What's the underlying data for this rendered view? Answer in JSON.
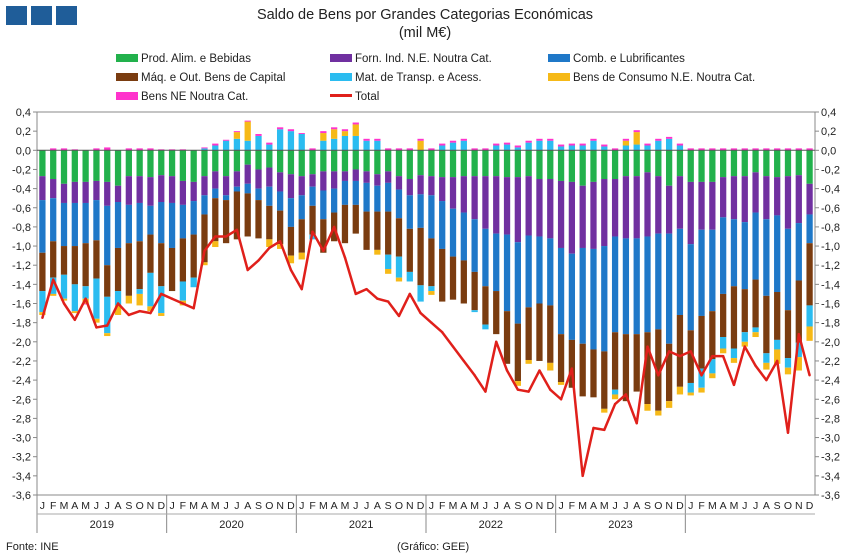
{
  "header": {
    "logo": "logo-squares"
  },
  "colors": {
    "prod_alim": "#22b14c",
    "forn_ind": "#7030a0",
    "comb": "#1f78c8",
    "maq": "#7a3c10",
    "transp": "#2bbcf0",
    "consumo": "#f6b917",
    "bens_ne": "#ff33cc",
    "total": "#e0201b"
  },
  "chart_data": {
    "type": "bar",
    "stacked": true,
    "title": "Saldo de Bens por Grandes Categorias Económicas",
    "subtitle": "(mil M€)",
    "ylim": [
      -3.6,
      0.4
    ],
    "yticks": [
      "0,4",
      "0,2",
      "0,0",
      "-0,2",
      "-0,4",
      "-0,6",
      "-0,8",
      "-1,0",
      "-1,2",
      "-1,4",
      "-1,6",
      "-1,8",
      "-2,0",
      "-2,2",
      "-2,4",
      "-2,6",
      "-2,8",
      "-3,0",
      "-3,2",
      "-3,4",
      "-3,6"
    ],
    "month_labels": [
      "J",
      "F",
      "M",
      "A",
      "M",
      "J",
      "J",
      "A",
      "S",
      "O",
      "N",
      "D"
    ],
    "years": [
      "2019",
      "2020",
      "2021",
      "2022",
      "2023"
    ],
    "legend": [
      "Prod. Alim. e Bebidas",
      "Forn. Ind. N.E. Noutra Cat.",
      "Comb. e Lubrificantes",
      "Máq. e Out. Bens de Capital",
      "Mat. de Transp. e Acess.",
      "Bens de Consumo N.E. Noutra Cat.",
      "Bens NE Noutra Cat.",
      "Total"
    ],
    "series": [
      {
        "name": "Prod. Alim. e Bebidas",
        "values": [
          -0.27,
          -0.3,
          -0.35,
          -0.33,
          -0.33,
          -0.32,
          -0.33,
          -0.37,
          -0.27,
          -0.27,
          -0.28,
          -0.26,
          -0.27,
          -0.32,
          -0.33,
          -0.27,
          -0.22,
          -0.27,
          -0.22,
          -0.15,
          -0.2,
          -0.18,
          -0.23,
          -0.25,
          -0.27,
          -0.25,
          -0.22,
          -0.22,
          -0.22,
          -0.2,
          -0.22,
          -0.25,
          -0.22,
          -0.27,
          -0.3,
          -0.26,
          -0.27,
          -0.28,
          -0.28,
          -0.27,
          -0.27,
          -0.27,
          -0.27,
          -0.28,
          -0.28,
          -0.27,
          -0.3,
          -0.3,
          -0.32,
          -0.33,
          -0.37,
          -0.33,
          -0.3,
          -0.3,
          -0.27,
          -0.27,
          -0.23,
          -0.27,
          -0.37,
          -0.27,
          -0.33,
          -0.33,
          -0.33,
          -0.28,
          -0.27,
          -0.27,
          -0.23,
          -0.27,
          -0.28,
          -0.27,
          -0.26,
          -0.35
        ]
      },
      {
        "name": "Forn. Ind. N.E. Noutra Cat.",
        "values": [
          -0.25,
          -0.2,
          -0.2,
          -0.22,
          -0.22,
          -0.2,
          -0.25,
          -0.17,
          -0.3,
          -0.28,
          -0.3,
          -0.28,
          -0.28,
          -0.25,
          -0.2,
          -0.2,
          -0.18,
          -0.2,
          -0.16,
          -0.2,
          -0.2,
          -0.2,
          -0.2,
          -0.25,
          -0.2,
          -0.13,
          -0.2,
          -0.18,
          -0.1,
          -0.12,
          -0.12,
          -0.12,
          -0.12,
          -0.14,
          -0.17,
          -0.2,
          -0.2,
          -0.25,
          -0.33,
          -0.38,
          -0.45,
          -0.55,
          -0.6,
          -0.6,
          -0.68,
          -0.62,
          -0.6,
          -0.62,
          -0.7,
          -0.75,
          -0.65,
          -0.7,
          -0.7,
          -0.6,
          -0.65,
          -0.65,
          -0.67,
          -0.6,
          -0.5,
          -0.55,
          -0.65,
          -0.5,
          -0.5,
          -0.42,
          -0.45,
          -0.48,
          -0.42,
          -0.45,
          -0.4,
          -0.55,
          -0.5,
          -0.32
        ]
      },
      {
        "name": "Comb. e Lubrificantes",
        "values": [
          -0.55,
          -0.45,
          -0.45,
          -0.45,
          -0.42,
          -0.42,
          -0.62,
          -0.48,
          -0.4,
          -0.4,
          -0.3,
          -0.43,
          -0.47,
          -0.35,
          -0.35,
          -0.2,
          -0.1,
          -0.05,
          -0.05,
          -0.1,
          -0.12,
          -0.2,
          -0.2,
          -0.3,
          -0.25,
          -0.2,
          -0.3,
          -0.25,
          -0.25,
          -0.25,
          -0.3,
          -0.27,
          -0.3,
          -0.3,
          -0.35,
          -0.35,
          -0.45,
          -0.5,
          -0.5,
          -0.5,
          -0.55,
          -0.6,
          -0.6,
          -0.8,
          -0.85,
          -0.75,
          -0.7,
          -0.7,
          -0.9,
          -0.9,
          -1.0,
          -1.05,
          -1.1,
          -1.0,
          -1.0,
          -1.0,
          -1.0,
          -1.0,
          -1.15,
          -0.9,
          -0.9,
          -0.9,
          -0.85,
          -0.8,
          -0.7,
          -0.7,
          -0.7,
          -0.8,
          -0.8,
          -0.85,
          -0.6,
          -0.3
        ]
      },
      {
        "name": "Máq. e Out. Bens de Capital",
        "values": [
          -0.4,
          -0.38,
          -0.3,
          -0.4,
          -0.45,
          -0.4,
          -0.33,
          -0.45,
          -0.55,
          -0.5,
          -0.4,
          -0.45,
          -0.45,
          -0.45,
          -0.45,
          -0.5,
          -0.45,
          -0.45,
          -0.5,
          -0.45,
          -0.4,
          -0.35,
          -0.35,
          -0.3,
          -0.35,
          -0.3,
          -0.35,
          -0.3,
          -0.4,
          -0.3,
          -0.4,
          -0.4,
          -0.45,
          -0.4,
          -0.45,
          -0.6,
          -0.5,
          -0.55,
          -0.45,
          -0.45,
          -0.4,
          -0.4,
          -0.45,
          -0.55,
          -0.6,
          -0.55,
          -0.6,
          -0.6,
          -0.5,
          -0.5,
          -0.55,
          -0.5,
          -0.6,
          -0.6,
          -0.7,
          -0.6,
          -0.75,
          -0.85,
          -0.6,
          -0.75,
          -0.55,
          -0.55,
          -0.5,
          -0.45,
          -0.65,
          -0.45,
          -0.5,
          -0.6,
          -0.5,
          -0.5,
          -0.65,
          -0.65
        ]
      },
      {
        "name": "Mat. de Transp. e Acess.",
        "values": [
          -0.22,
          -0.17,
          -0.25,
          -0.28,
          -0.13,
          -0.42,
          -0.38,
          -0.15,
          0.0,
          -0.05,
          -0.35,
          -0.28,
          0.0,
          -0.2,
          -0.1,
          0.02,
          0.05,
          0.1,
          0.12,
          0.1,
          0.15,
          0.06,
          0.22,
          0.2,
          0.17,
          -0.05,
          0.1,
          0.12,
          0.15,
          0.15,
          0.1,
          0.1,
          -0.15,
          -0.22,
          -0.1,
          -0.17,
          -0.05,
          0.05,
          0.08,
          0.1,
          -0.02,
          -0.05,
          0.05,
          0.06,
          0.03,
          0.08,
          0.1,
          0.1,
          0.04,
          0.05,
          0.05,
          0.1,
          0.04,
          -0.05,
          0.05,
          0.06,
          0.05,
          0.1,
          0.12,
          0.05,
          -0.1,
          -0.2,
          -0.15,
          -0.12,
          -0.1,
          -0.1,
          -0.05,
          -0.1,
          -0.1,
          -0.1,
          -0.15,
          -0.22
        ]
      },
      {
        "name": "Bens de Consumo N.E. Noutra Cat.",
        "values": [
          -0.03,
          -0.02,
          -0.02,
          -0.02,
          -0.05,
          -0.04,
          -0.03,
          -0.1,
          -0.08,
          -0.12,
          -0.05,
          -0.03,
          0.0,
          -0.05,
          0.0,
          -0.03,
          -0.06,
          0.0,
          0.07,
          0.2,
          0.0,
          -0.08,
          -0.05,
          -0.08,
          -0.07,
          0.0,
          0.08,
          0.1,
          0.05,
          0.12,
          0.0,
          -0.05,
          -0.05,
          -0.04,
          0.0,
          0.1,
          -0.04,
          0.0,
          0.0,
          0.0,
          0.0,
          0.0,
          0.0,
          0.0,
          -0.05,
          -0.04,
          0.0,
          -0.08,
          -0.03,
          0.0,
          0.0,
          0.0,
          -0.04,
          -0.05,
          0.05,
          0.13,
          -0.07,
          -0.05,
          -0.07,
          -0.08,
          -0.03,
          -0.05,
          -0.05,
          -0.05,
          -0.05,
          -0.05,
          -0.05,
          -0.07,
          -0.15,
          -0.07,
          -0.14,
          -0.15
        ]
      },
      {
        "name": "Bens NE Noutra Cat.",
        "values": [
          0.0,
          0.02,
          0.02,
          0.01,
          -0.01,
          0.02,
          0.03,
          0.0,
          0.02,
          0.02,
          0.02,
          0.01,
          0.01,
          0.01,
          0.0,
          0.01,
          0.02,
          0.01,
          0.01,
          0.01,
          0.02,
          0.02,
          0.02,
          0.02,
          0.01,
          0.02,
          0.02,
          0.02,
          0.02,
          0.02,
          0.02,
          0.02,
          0.02,
          0.02,
          0.02,
          0.02,
          0.02,
          0.02,
          0.02,
          0.02,
          0.02,
          0.02,
          0.02,
          0.02,
          0.02,
          0.02,
          0.02,
          0.02,
          0.02,
          0.02,
          0.02,
          0.02,
          0.02,
          0.02,
          0.02,
          0.02,
          0.02,
          0.02,
          0.02,
          0.02,
          0.02,
          0.02,
          0.02,
          0.02,
          0.02,
          0.02,
          0.02,
          0.02,
          0.02,
          0.02,
          0.02,
          0.02
        ]
      },
      {
        "name": "Total",
        "values": [
          -1.75,
          -1.35,
          -1.6,
          -1.77,
          -1.55,
          -1.85,
          -1.83,
          -1.6,
          -1.72,
          -1.68,
          -1.7,
          -1.5,
          -1.55,
          -1.6,
          -1.65,
          -1.05,
          -0.9,
          -0.9,
          -0.83,
          -1.25,
          -1.15,
          -1.02,
          -0.95,
          -1.25,
          -1.45,
          -0.85,
          -1.05,
          -0.8,
          -1.12,
          -1.5,
          -1.45,
          -1.55,
          -1.58,
          -1.73,
          -1.5,
          -1.7,
          -1.8,
          -1.9,
          -2.05,
          -2.2,
          -2.35,
          -2.52,
          -2.0,
          -2.3,
          -2.5,
          -2.52,
          -2.3,
          -2.5,
          -2.6,
          -2.28,
          -3.4,
          -2.9,
          -2.92,
          -2.65,
          -2.55,
          -2.85,
          -2.05,
          -2.35,
          -2.1,
          -2.15,
          -2.1,
          -2.35,
          -2.15,
          -2.15,
          -2.45,
          -2.05,
          -2.25,
          -2.4,
          -2.2,
          -2.95,
          -1.92,
          -2.35
        ]
      }
    ],
    "note_left": "Fonte: INE",
    "note_right": "(Gráfico: GEE)"
  }
}
